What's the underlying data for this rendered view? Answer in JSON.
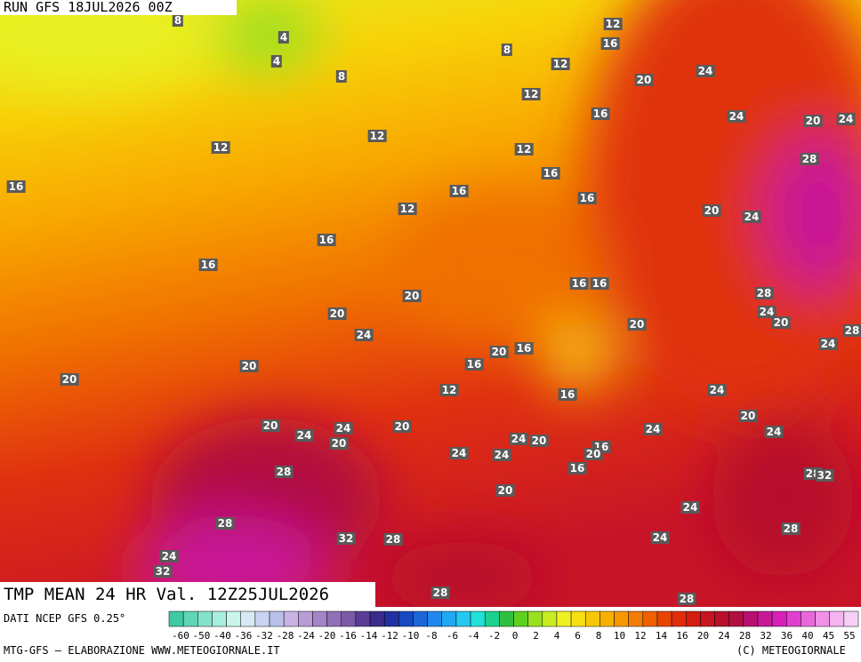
{
  "header": {
    "run": "RUN GFS 18JUL2026 00Z",
    "product": "TMP MEAN 24 HR Val. 12Z25JUL2026"
  },
  "map": {
    "labels": [
      "12",
      "16",
      "8",
      "12",
      "4",
      "4",
      "8",
      "8",
      "20",
      "24",
      "12",
      "16",
      "24",
      "20",
      "24",
      "12",
      "12",
      "12",
      "28",
      "16",
      "16",
      "16",
      "16",
      "12",
      "20",
      "24",
      "16",
      "16",
      "20",
      "16",
      "16",
      "28",
      "20",
      "24",
      "20",
      "20",
      "24",
      "24",
      "28",
      "20",
      "16",
      "20",
      "16",
      "20",
      "12",
      "16",
      "24",
      "20",
      "20",
      "24",
      "24",
      "20",
      "20",
      "24",
      "24",
      "24",
      "20",
      "16",
      "20",
      "24",
      "24",
      "16",
      "28",
      "28",
      "32",
      "20",
      "24",
      "28",
      "32",
      "28",
      "24",
      "28",
      "24",
      "32",
      "28",
      "28"
    ]
  },
  "legend": {
    "ticks": [
      -60,
      -50,
      -40,
      -36,
      -32,
      -28,
      -24,
      -20,
      -16,
      -14,
      -12,
      -10,
      -8,
      -6,
      -4,
      -2,
      0,
      2,
      4,
      6,
      8,
      10,
      12,
      14,
      16,
      20,
      24,
      28,
      32,
      36,
      40,
      45,
      55
    ],
    "colors": [
      "#3fc9a4",
      "#5fd6b4",
      "#84e2c8",
      "#a8eedc",
      "#c9f5ea",
      "#d8e8f6",
      "#c8d4f0",
      "#b8c0ea",
      "#c8b4e2",
      "#b89cd6",
      "#a684c8",
      "#9070b8",
      "#7c5aa8",
      "#5a3c96",
      "#3a2a8a",
      "#2030a0",
      "#1848c0",
      "#1c66d8",
      "#2088ec",
      "#20a8f4",
      "#24c8f0",
      "#20e0d8",
      "#1cd090",
      "#30c040",
      "#60d020",
      "#98e020",
      "#c8ec20",
      "#f0f020",
      "#f8e010",
      "#f8c808",
      "#f8b000",
      "#f89800",
      "#f47c00",
      "#f06000",
      "#e84400",
      "#e02c08",
      "#d41c10",
      "#c81420",
      "#b8102c",
      "#b01040",
      "#b81070",
      "#c81898",
      "#d820b8",
      "#e040d0",
      "#e868dc",
      "#f090e8",
      "#f4b4f0",
      "#f8d0f4"
    ]
  },
  "footer": {
    "source": "DATI NCEP GFS 0.25°",
    "credit": "MTG-GFS — ELABORAZIONE WWW.METEOGIORNALE.IT",
    "copyright": "(C) METEOGIORNALE"
  }
}
